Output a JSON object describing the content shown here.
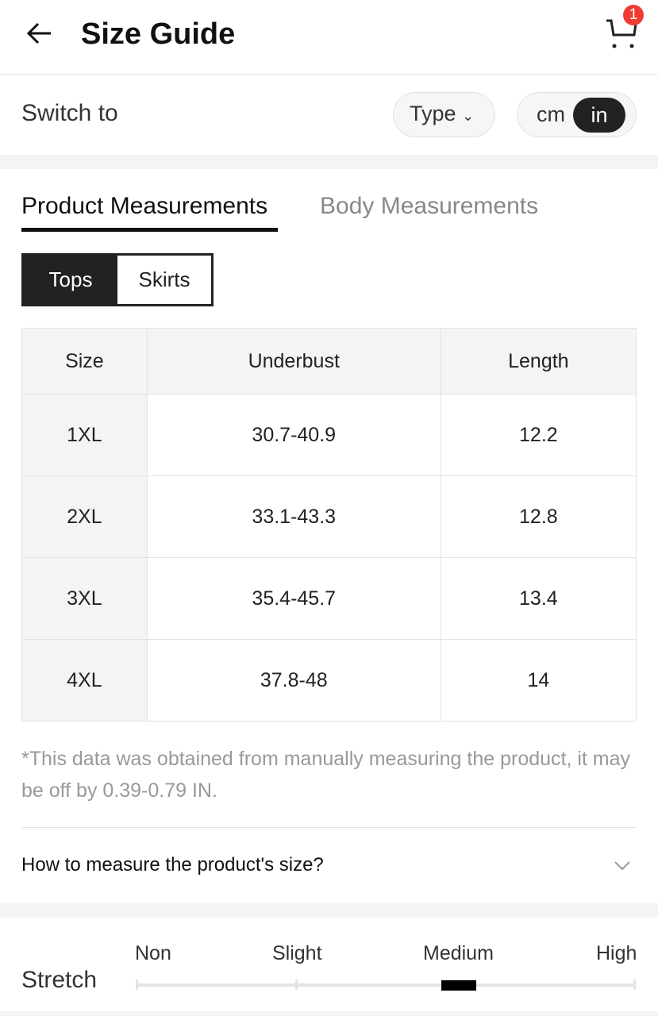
{
  "header": {
    "title": "Size Guide",
    "cart_count": "1"
  },
  "controls": {
    "switch_label": "Switch to",
    "type_label": "Type",
    "units": [
      "cm",
      "in"
    ],
    "selected_unit": "in"
  },
  "tabs": [
    {
      "label": "Product Measurements",
      "active": true
    },
    {
      "label": "Body Measurements",
      "active": false
    }
  ],
  "segments": [
    {
      "label": "Tops",
      "active": true
    },
    {
      "label": "Skirts",
      "active": false
    }
  ],
  "table": {
    "headers": [
      "Size",
      "Underbust",
      "Length"
    ],
    "rows": [
      [
        "1XL",
        "30.7-40.9",
        "12.2"
      ],
      [
        "2XL",
        "33.1-43.3",
        "12.8"
      ],
      [
        "3XL",
        "35.4-45.7",
        "13.4"
      ],
      [
        "4XL",
        "37.8-48",
        "14"
      ]
    ]
  },
  "note": "*This data was obtained from manually measuring the product, it may be off by 0.39-0.79 IN.",
  "how_to_measure": "How to measure the product's size?",
  "stretch": {
    "label": "Stretch",
    "levels": [
      "Non",
      "Slight",
      "Medium",
      "High"
    ],
    "selected": "Medium"
  },
  "colors": {
    "accent": "#222222",
    "badge": "#f03b32"
  }
}
